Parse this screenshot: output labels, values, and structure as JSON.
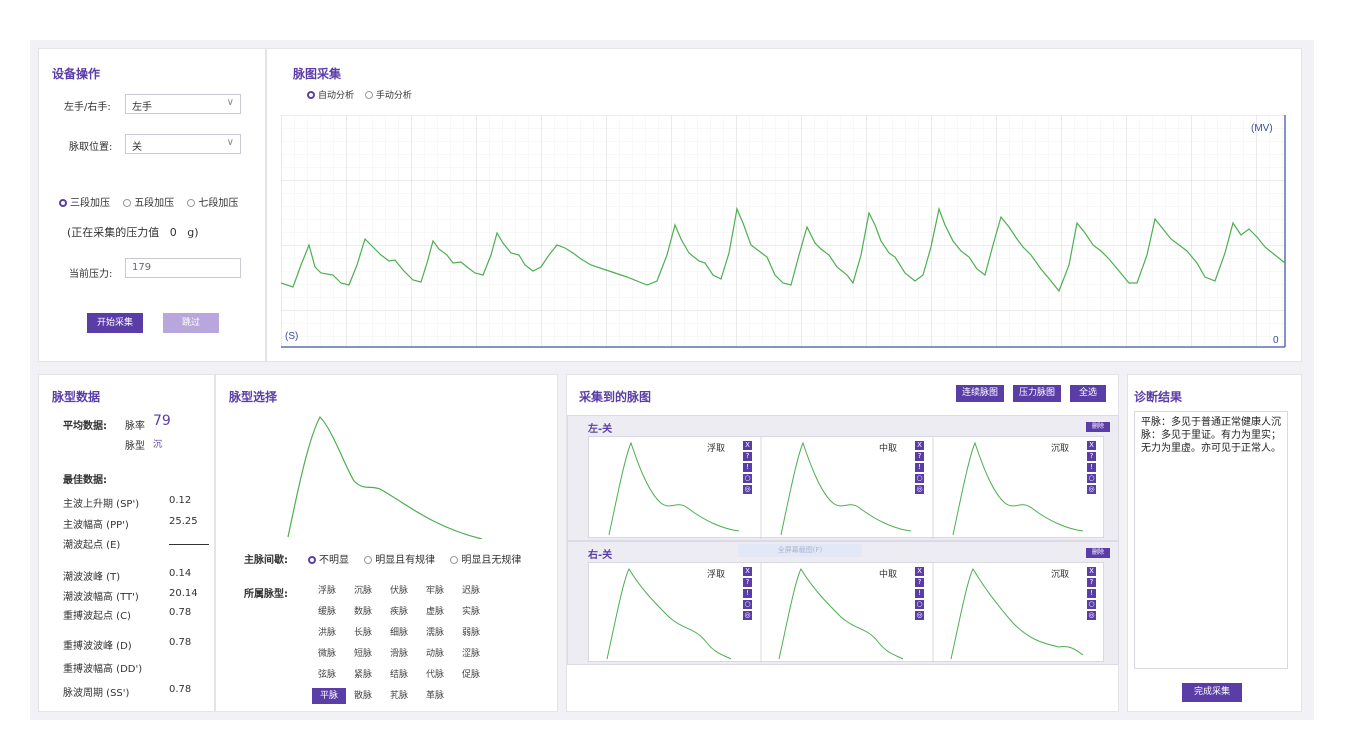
{
  "device": {
    "title": "设备操作",
    "hand_label": "左手/右手:",
    "hand_value": "左手",
    "position_label": "脉取位置:",
    "position_value": "关",
    "pressure_modes": [
      "三段加压",
      "五段加压",
      "七段加压"
    ],
    "pressure_selected": 0,
    "collecting_text": "(正在采集的压力值   0   g)",
    "current_pressure_label": "当前压力:",
    "current_pressure_value": "179",
    "start_button": "开始采集",
    "skip_button": "跳过"
  },
  "capture": {
    "title": "脉图采集",
    "modes": [
      "自动分析",
      "手动分析"
    ],
    "selected": 0,
    "y_unit": "(MV)",
    "x_unit": "(S)",
    "origin": "0"
  },
  "pulse_data": {
    "title": "脉型数据",
    "avg_label": "平均数据:",
    "rate_label": "脉率",
    "rate_value": "79",
    "type_label": "脉型",
    "type_value": "沉",
    "best_label": "最佳数据:",
    "rows": [
      {
        "label": "主波上升期 (SP')",
        "value": "0.12"
      },
      {
        "label": "主波幅高 (PP')",
        "value": "25.25"
      },
      {
        "label": "潮波起点 (E)",
        "value": ""
      },
      {
        "label": "潮波波峰 (T)",
        "value": "0.14"
      },
      {
        "label": "潮波波幅高 (TT')",
        "value": "20.14"
      },
      {
        "label": "重搏波起点 (C)",
        "value": "0.78"
      },
      {
        "label": "重搏波波峰 (D)",
        "value": "0.78"
      },
      {
        "label": "重搏波幅高 (DD')",
        "value": ""
      },
      {
        "label": "脉波周期 (SS')",
        "value": "0.78"
      }
    ]
  },
  "pulse_select": {
    "title": "脉型选择",
    "interval_label": "主脉间歇:",
    "interval_options": [
      "不明显",
      "明显且有规律",
      "明显且无规律"
    ],
    "interval_selected": 0,
    "type_label": "所属脉型:",
    "types": [
      [
        "浮脉",
        "沉脉",
        "伏脉",
        "牢脉",
        "迟脉"
      ],
      [
        "缓脉",
        "数脉",
        "疾脉",
        "虚脉",
        "实脉"
      ],
      [
        "洪脉",
        "长脉",
        "细脉",
        "濡脉",
        "弱脉"
      ],
      [
        "微脉",
        "短脉",
        "滑脉",
        "动脉",
        "涩脉"
      ],
      [
        "弦脉",
        "紧脉",
        "结脉",
        "代脉",
        "促脉"
      ],
      [
        "平脉",
        "散脉",
        "芤脉",
        "革脉"
      ]
    ],
    "type_selected": "平脉"
  },
  "collected": {
    "title": "采集到的脉图",
    "buttons": [
      "连续脉图",
      "压力脉图",
      "全选"
    ],
    "left_section": "左-关",
    "right_section": "右-关",
    "delete_tag": "删除",
    "hint": "全屏幕截图(F)",
    "cells": [
      "浮取",
      "中取",
      "沉取"
    ],
    "icons": [
      "X",
      "?",
      "!",
      "○",
      "◎"
    ]
  },
  "diagnosis": {
    "title": "诊断结果",
    "text": "平脉：多见于普通正常健康人沉脉：多见于里证。有力为里实；无力为里虚。亦可见于正常人。",
    "finish_button": "完成采集"
  },
  "colors": {
    "accent": "#5b3da8",
    "wave": "#4caf50",
    "grid": "#dcdcdc"
  }
}
